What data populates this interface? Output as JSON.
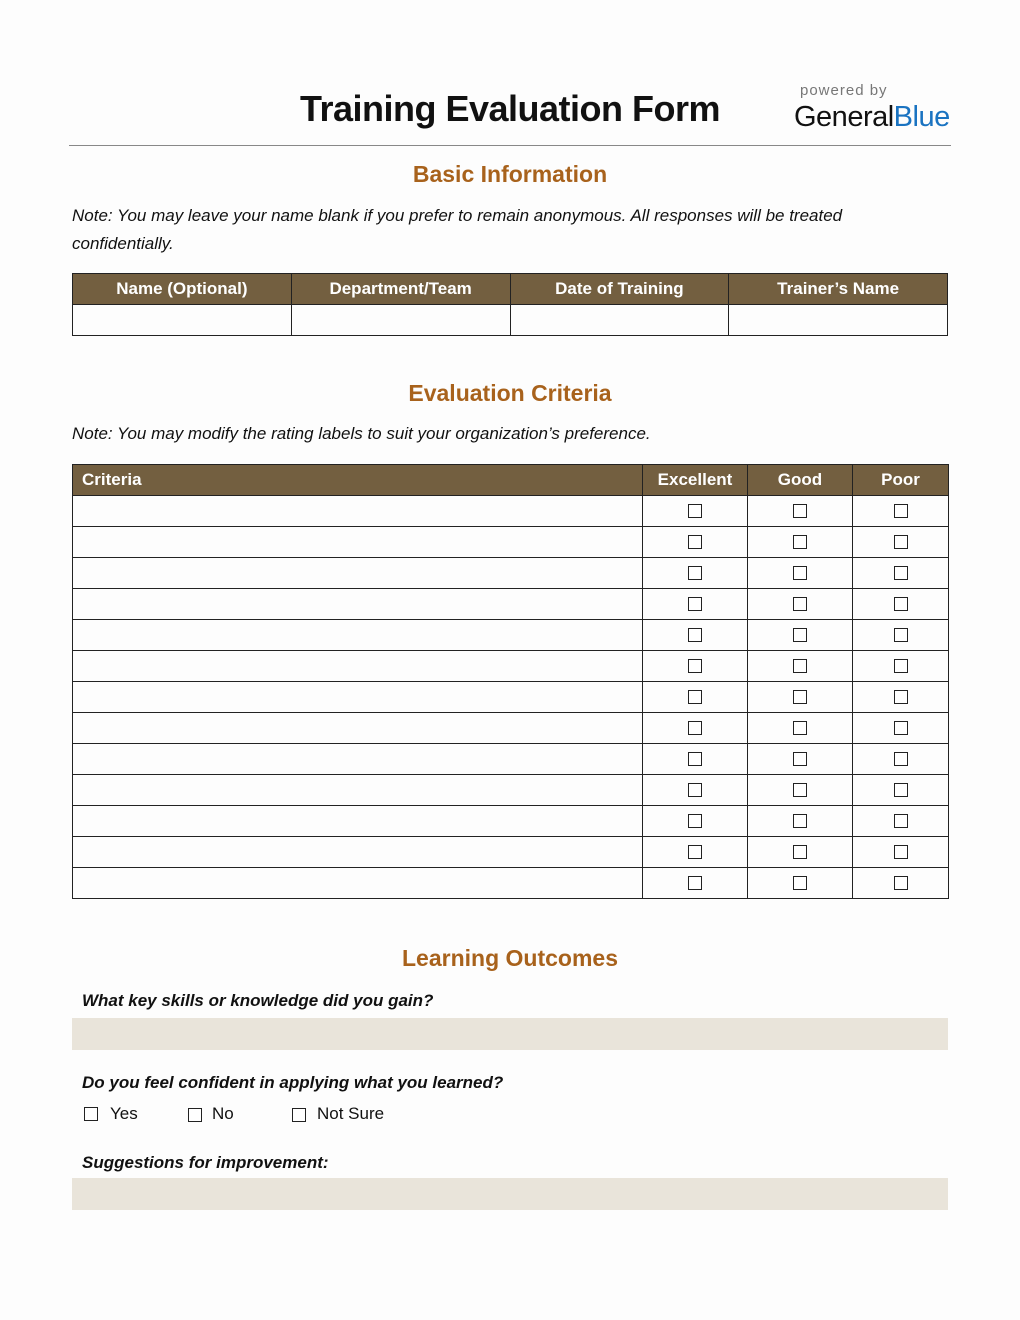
{
  "header": {
    "title": "Training Evaluation Form",
    "powered_by": "powered by",
    "brand_general": "General",
    "brand_blue": "Blue"
  },
  "basic": {
    "heading": "Basic Information",
    "note_line1": "Note: You may leave your name blank if you prefer to remain anonymous. All responses will be treated",
    "note_line2": "confidentially.",
    "columns": [
      "Name (Optional)",
      "Department/Team",
      "Date of Training",
      "Trainer’s Name"
    ]
  },
  "evaluation": {
    "heading": "Evaluation Criteria",
    "note": "Note: You may modify the rating labels to suit your organization’s preference.",
    "columns": [
      "Criteria",
      "Excellent",
      "Good",
      "Poor"
    ],
    "rows": [
      "",
      "",
      "",
      "",
      "",
      "",
      "",
      "",
      "",
      "",
      "",
      "",
      ""
    ]
  },
  "outcomes": {
    "heading": "Learning Outcomes",
    "q1": "What key skills or knowledge did you gain?",
    "q2": "Do you feel confident in applying what you learned?",
    "options": [
      "Yes",
      "No",
      "Not Sure"
    ],
    "q3": "Suggestions for improvement:"
  },
  "colors": {
    "header_fill": "#735f40",
    "heading": "#a8621c",
    "answer_fill": "#e9e4da",
    "brand_blue": "#1a73c1"
  }
}
